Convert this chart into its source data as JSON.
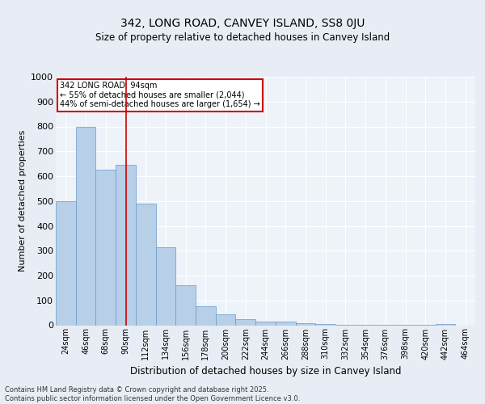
{
  "title1": "342, LONG ROAD, CANVEY ISLAND, SS8 0JU",
  "title2": "Size of property relative to detached houses in Canvey Island",
  "xlabel": "Distribution of detached houses by size in Canvey Island",
  "ylabel": "Number of detached properties",
  "categories": [
    "24sqm",
    "46sqm",
    "68sqm",
    "90sqm",
    "112sqm",
    "134sqm",
    "156sqm",
    "178sqm",
    "200sqm",
    "222sqm",
    "244sqm",
    "266sqm",
    "288sqm",
    "310sqm",
    "332sqm",
    "354sqm",
    "376sqm",
    "398sqm",
    "420sqm",
    "442sqm",
    "464sqm"
  ],
  "values": [
    500,
    800,
    625,
    645,
    490,
    315,
    160,
    75,
    45,
    25,
    15,
    15,
    8,
    5,
    3,
    3,
    2,
    1,
    1,
    5,
    0
  ],
  "bar_color": "#b8cfe8",
  "bar_edge_color": "#6699cc",
  "vline_x_index": 3,
  "vline_color": "#cc0000",
  "ylim": [
    0,
    1000
  ],
  "yticks": [
    0,
    100,
    200,
    300,
    400,
    500,
    600,
    700,
    800,
    900,
    1000
  ],
  "annotation_text": "342 LONG ROAD: 94sqm\n← 55% of detached houses are smaller (2,044)\n44% of semi-detached houses are larger (1,654) →",
  "annotation_box_color": "#ffffff",
  "annotation_box_edge": "#cc0000",
  "footer": "Contains HM Land Registry data © Crown copyright and database right 2025.\nContains public sector information licensed under the Open Government Licence v3.0.",
  "bg_color": "#e8edf5",
  "plot_bg_color": "#eef2f9",
  "grid_color": "#ffffff",
  "title1_fontsize": 10,
  "title2_fontsize": 8.5,
  "ylabel_fontsize": 8,
  "xlabel_fontsize": 8.5,
  "ytick_fontsize": 8,
  "xtick_fontsize": 7,
  "footer_fontsize": 6,
  "ann_fontsize": 7
}
